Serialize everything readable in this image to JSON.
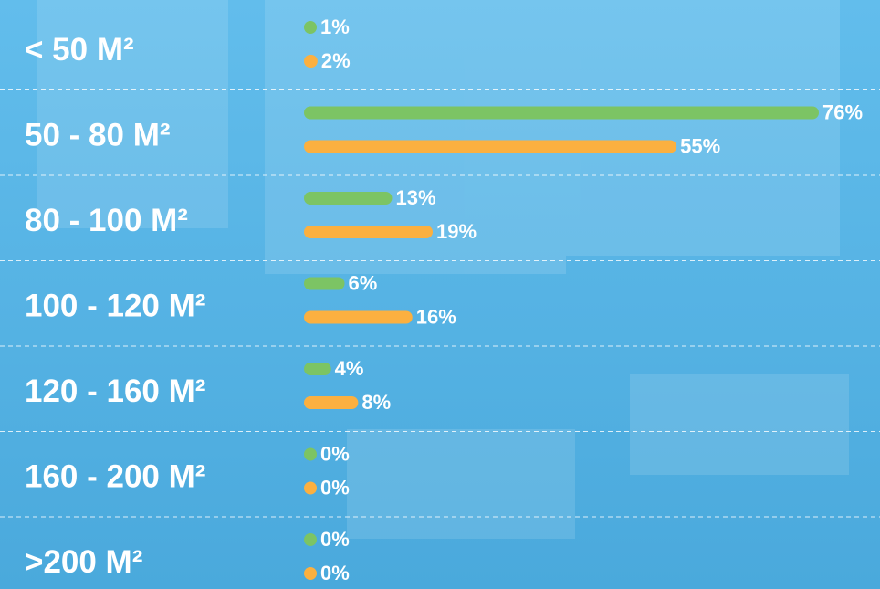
{
  "chart_data": {
    "type": "bar",
    "orientation": "horizontal",
    "categories": [
      "< 50 M²",
      "50 - 80 M²",
      "80 - 100 M²",
      "100 - 120 M²",
      "120 - 160 M²",
      "160 - 200 M²",
      ">200 M²"
    ],
    "series": [
      {
        "color": "#7cc464",
        "values": [
          1,
          76,
          13,
          6,
          4,
          0,
          0
        ],
        "value_labels": [
          "1%",
          "76%",
          "13%",
          "6%",
          "4%",
          "0%",
          "0%"
        ]
      },
      {
        "color": "#fbb040",
        "values": [
          2,
          55,
          19,
          16,
          8,
          0,
          0
        ],
        "value_labels": [
          "2%",
          "55%",
          "19%",
          "16%",
          "8%",
          "0%",
          "0%"
        ]
      }
    ]
  }
}
